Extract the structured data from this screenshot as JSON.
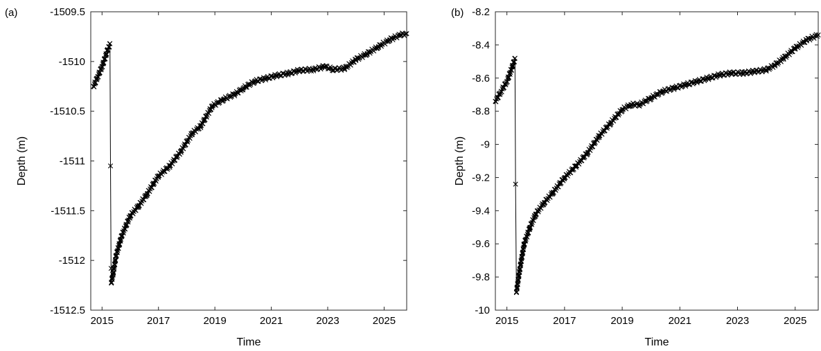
{
  "chart_data": [
    {
      "type": "line",
      "panel_label": "(a)",
      "xlabel": "Time",
      "ylabel": "Depth (m)",
      "xlim": [
        2014.6,
        2025.8
      ],
      "ylim": [
        -1512.5,
        -1509.5
      ],
      "xticks": [
        2015,
        2017,
        2019,
        2021,
        2023,
        2025
      ],
      "xtick_labels": [
        "2015",
        "2017",
        "2019",
        "2021",
        "2023",
        "2025"
      ],
      "yticks": [
        -1509.5,
        -1510,
        -1510.5,
        -1511,
        -1511.5,
        -1512,
        -1512.5
      ],
      "ytick_labels": [
        "-1509.5",
        "-1510",
        "-1510.5",
        "-1511",
        "-1511.5",
        "-1512",
        "-1512.5"
      ],
      "grid": false,
      "marker": "x",
      "color": "#000000",
      "series": [
        {
          "x": [
            2014.7,
            2014.85,
            2015.0,
            2015.1,
            2015.2,
            2015.25,
            2015.28,
            2015.3,
            2015.32,
            2015.33,
            2015.4,
            2015.5,
            2015.7,
            2016.0,
            2016.3,
            2016.6,
            2017.0,
            2017.4,
            2017.8,
            2018.2,
            2018.5,
            2018.9,
            2019.3,
            2019.7,
            2020.0,
            2020.4,
            2020.8,
            2021.2,
            2021.6,
            2022.0,
            2022.5,
            2022.9,
            2023.2,
            2023.6,
            2024.0,
            2024.4,
            2024.8,
            2025.2,
            2025.6,
            2025.8
          ],
          "y": [
            -1510.25,
            -1510.15,
            -1510.05,
            -1509.97,
            -1509.88,
            -1509.85,
            -1509.82,
            -1511.05,
            -1512.08,
            -1512.22,
            -1512.12,
            -1511.95,
            -1511.75,
            -1511.55,
            -1511.45,
            -1511.33,
            -1511.15,
            -1511.05,
            -1510.9,
            -1510.72,
            -1510.65,
            -1510.45,
            -1510.38,
            -1510.33,
            -1510.27,
            -1510.2,
            -1510.17,
            -1510.14,
            -1510.12,
            -1510.09,
            -1510.08,
            -1510.05,
            -1510.08,
            -1510.07,
            -1509.98,
            -1509.92,
            -1509.85,
            -1509.78,
            -1509.73,
            -1509.72
          ]
        }
      ]
    },
    {
      "type": "line",
      "panel_label": "(b)",
      "xlabel": "Time",
      "ylabel": "Depth (m)",
      "xlim": [
        2014.6,
        2025.8
      ],
      "ylim": [
        -10,
        -8.2
      ],
      "xticks": [
        2015,
        2017,
        2019,
        2021,
        2023,
        2025
      ],
      "xtick_labels": [
        "2015",
        "2017",
        "2019",
        "2021",
        "2023",
        "2025"
      ],
      "yticks": [
        -8.2,
        -8.4,
        -8.6,
        -8.8,
        -9,
        -9.2,
        -9.4,
        -9.6,
        -9.8,
        -10
      ],
      "ytick_labels": [
        "-8.2",
        "-8.4",
        "-8.6",
        "-8.8",
        "-9",
        "-9.2",
        "-9.4",
        "-9.6",
        "-9.8",
        "-10"
      ],
      "grid": false,
      "marker": "x",
      "color": "#000000",
      "series": [
        {
          "x": [
            2014.6,
            2014.8,
            2015.0,
            2015.15,
            2015.25,
            2015.28,
            2015.3,
            2015.33,
            2015.45,
            2015.6,
            2015.8,
            2016.0,
            2016.3,
            2016.6,
            2017.0,
            2017.4,
            2017.8,
            2018.2,
            2018.6,
            2019.0,
            2019.3,
            2019.6,
            2020.0,
            2020.4,
            2020.8,
            2021.2,
            2021.6,
            2022.0,
            2022.4,
            2022.8,
            2023.2,
            2023.6,
            2024.0,
            2024.3,
            2024.6,
            2025.0,
            2025.4,
            2025.8
          ],
          "y": [
            -8.74,
            -8.68,
            -8.62,
            -8.55,
            -8.5,
            -8.48,
            -9.24,
            -9.89,
            -9.75,
            -9.6,
            -9.5,
            -9.42,
            -9.35,
            -9.29,
            -9.2,
            -9.13,
            -9.05,
            -8.95,
            -8.87,
            -8.79,
            -8.76,
            -8.76,
            -8.72,
            -8.68,
            -8.66,
            -8.64,
            -8.62,
            -8.6,
            -8.58,
            -8.57,
            -8.57,
            -8.56,
            -8.55,
            -8.52,
            -8.48,
            -8.42,
            -8.37,
            -8.34
          ]
        }
      ]
    }
  ]
}
